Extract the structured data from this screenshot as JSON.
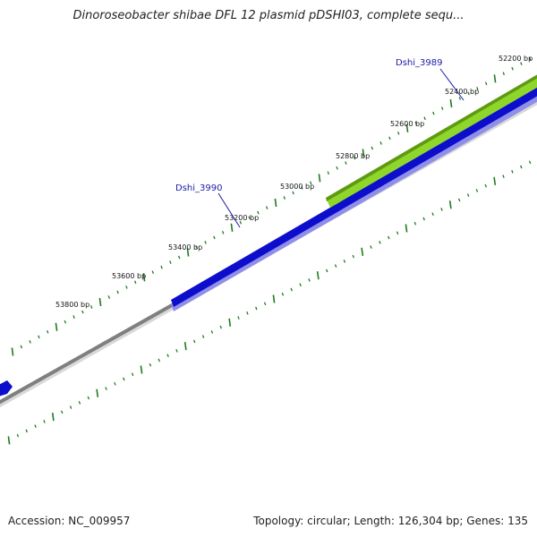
{
  "title": "Dinoroseobacter shibae DFL 12 plasmid pDSHI03, complete sequ...",
  "footer": {
    "accession_label": "Accession:",
    "accession": "NC_009957",
    "topology_label": "Topology:",
    "topology": "circular",
    "length_label": "Length:",
    "length": "126,304 bp",
    "genes_label": "Genes:",
    "genes": "135"
  },
  "colors": {
    "backbone": "#7f7f7f",
    "reverse_strand_gene": "#0d0dcc",
    "forward_strand_gene": "#8ed62a",
    "tick": "#1e7a1e",
    "gene_label": "#1a1aaa"
  },
  "chart_data": {
    "type": "circular-genome-map",
    "position_labels": [
      "52200 bp",
      "52400 bp",
      "52600 bp",
      "52800 bp",
      "53000 bp",
      "53200 bp",
      "53400 bp",
      "53600 bp",
      "53800 bp"
    ],
    "genes": [
      {
        "name": "Dshi_3989",
        "strand": "forward",
        "color": "#8ed62a"
      },
      {
        "name": "Dshi_3990",
        "strand": "reverse",
        "color": "#0d0dcc"
      }
    ]
  }
}
